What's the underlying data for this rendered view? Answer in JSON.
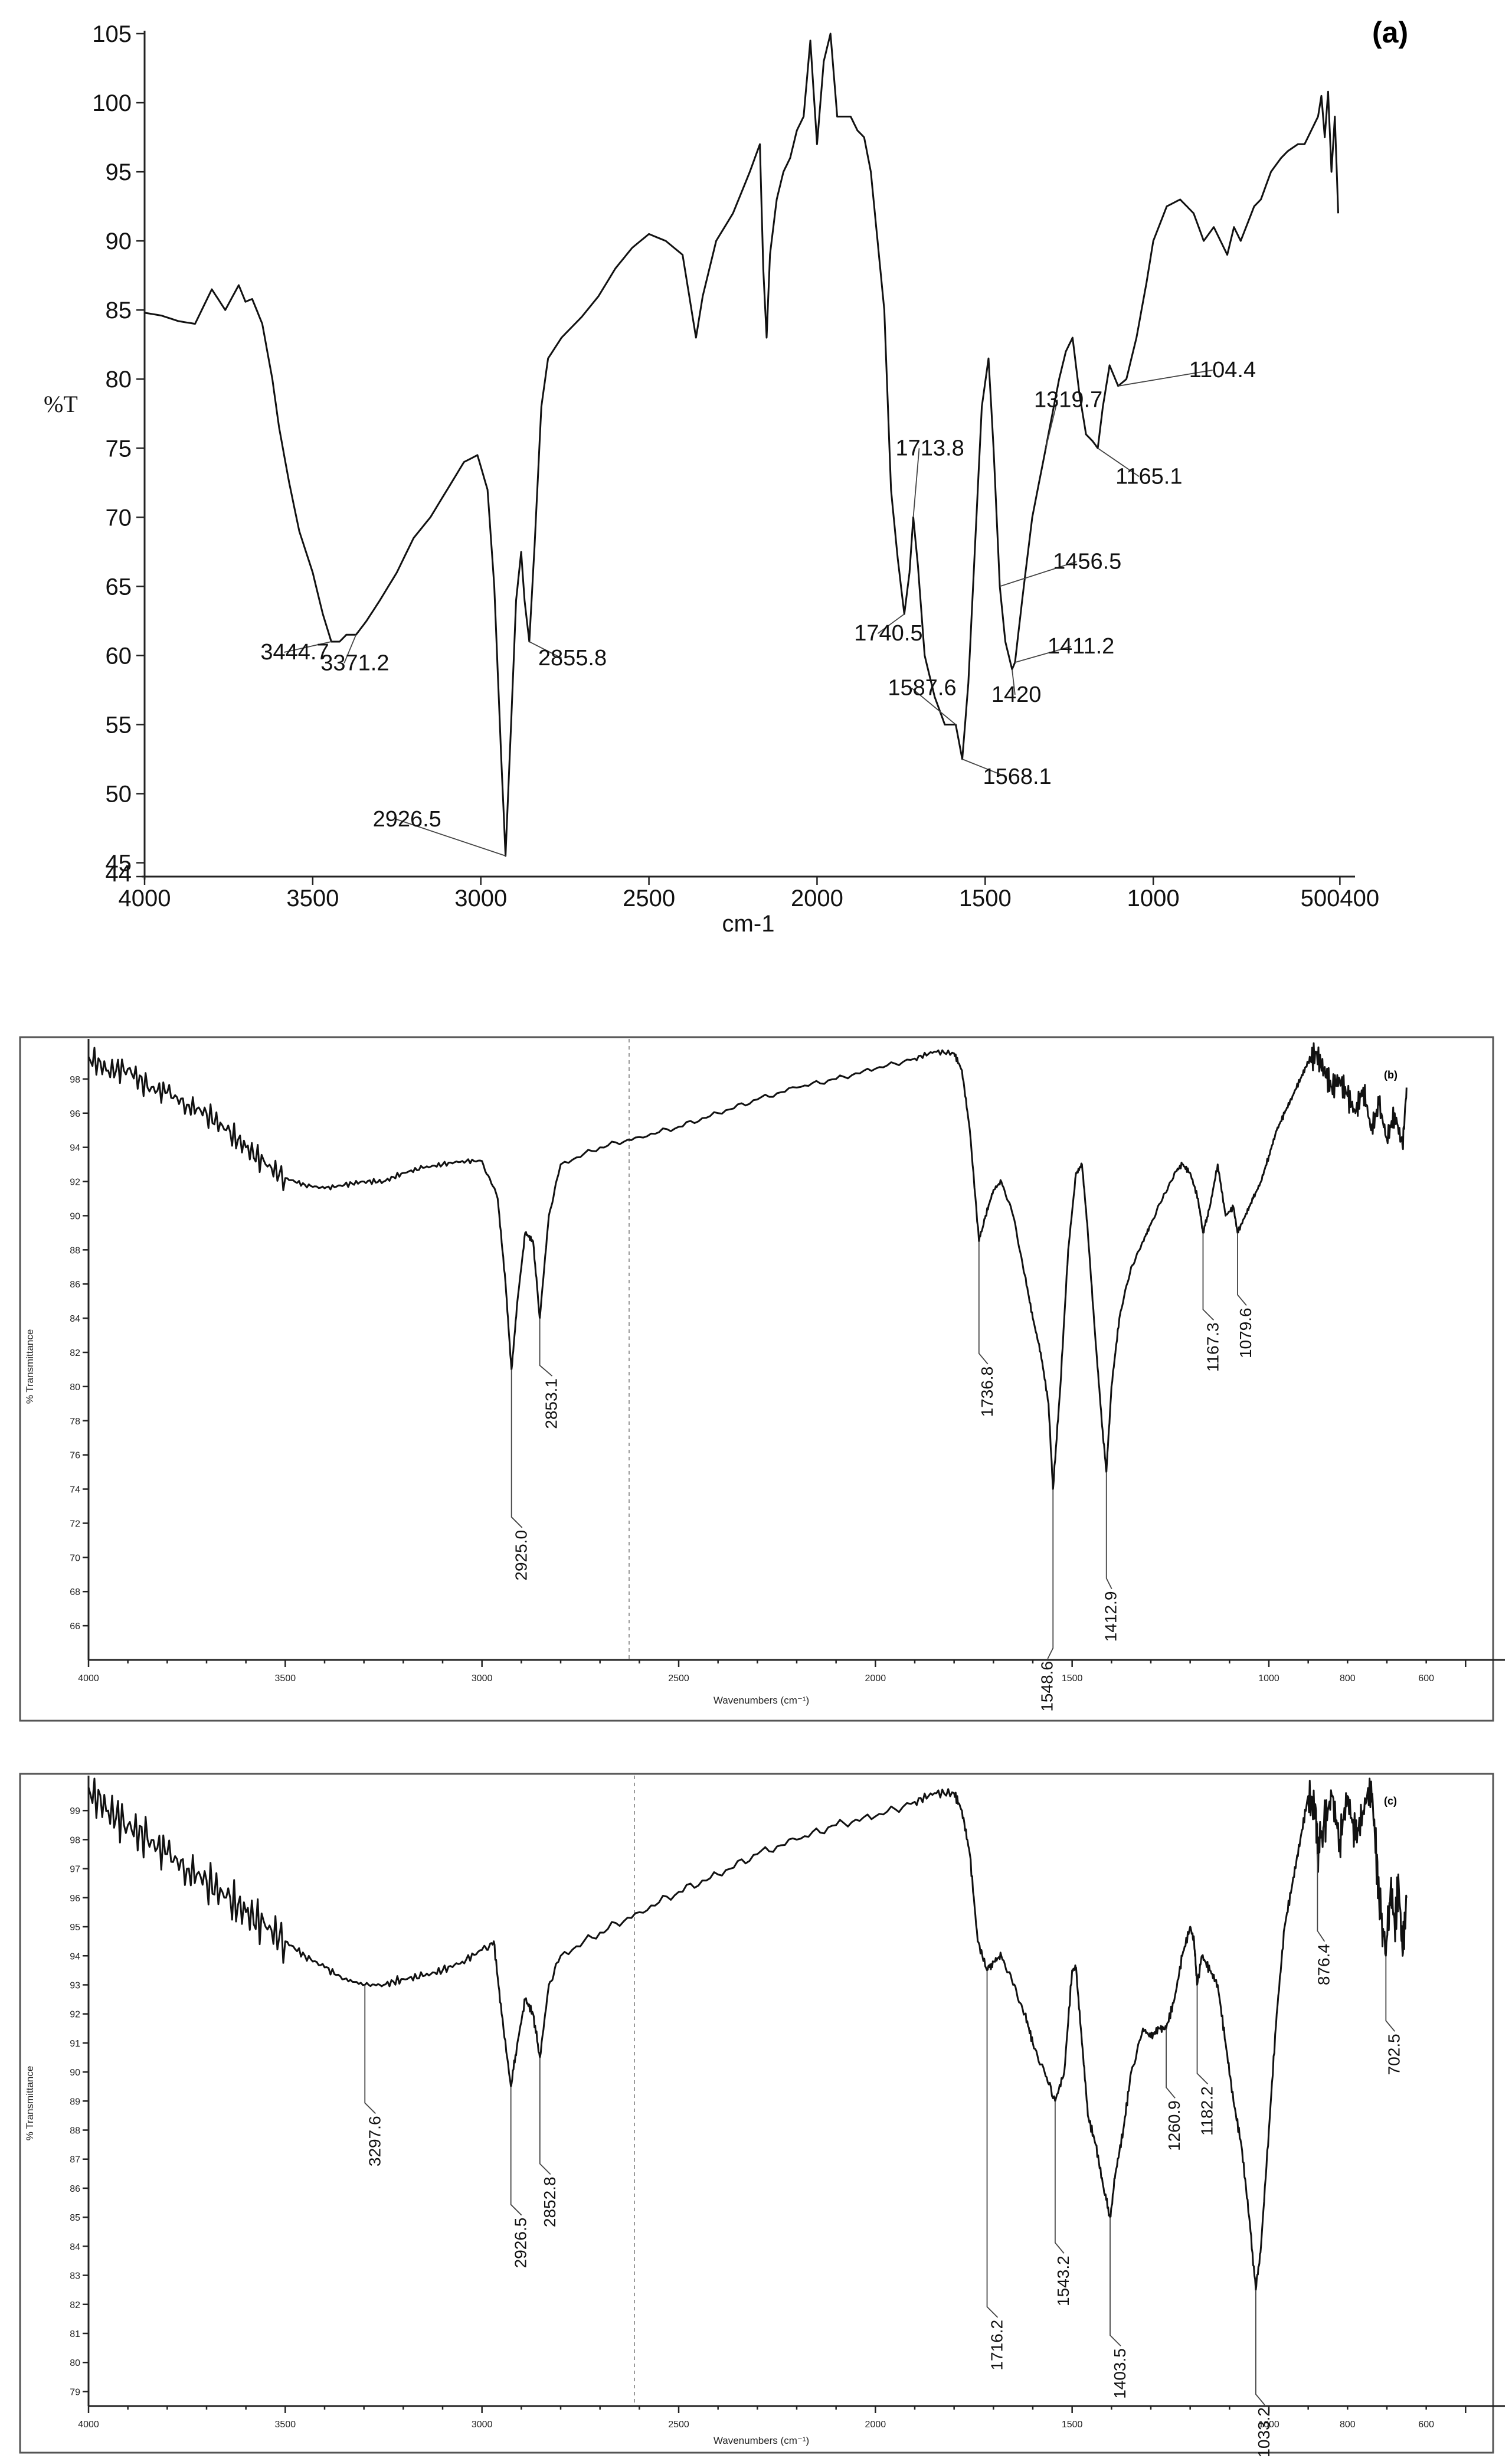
{
  "chart_data": [
    {
      "type": "line",
      "panel_label": "(a)",
      "xlabel": "cm-1",
      "ylabel": "%T",
      "xlim": [
        4000,
        400
      ],
      "ylim": [
        44,
        105
      ],
      "x_ticks": [
        "4000",
        "3500",
        "3000",
        "2500",
        "2000",
        "1500",
        "1000",
        "500400"
      ],
      "y_ticks": [
        44,
        45,
        50,
        55,
        60,
        65,
        70,
        75,
        80,
        85,
        90,
        95,
        100,
        105
      ],
      "grid": false,
      "series": [
        {
          "x": [
            4000,
            3950,
            3900,
            3850,
            3800,
            3760,
            3720,
            3700,
            3680,
            3650,
            3620,
            3600,
            3570,
            3540,
            3500,
            3470,
            3444.7,
            3420,
            3400,
            3371.2,
            3340,
            3300,
            3250,
            3200,
            3150,
            3100,
            3050,
            3010,
            2980,
            2960,
            2940,
            2926.5,
            2910,
            2895,
            2880,
            2870,
            2855.8,
            2840,
            2820,
            2800,
            2760,
            2700,
            2650,
            2600,
            2550,
            2500,
            2450,
            2400,
            2380,
            2360,
            2340,
            2300,
            2250,
            2200,
            2170,
            2160,
            2150,
            2140,
            2120,
            2100,
            2080,
            2060,
            2040,
            2020,
            2000,
            1980,
            1960,
            1940,
            1900,
            1880,
            1860,
            1840,
            1820,
            1800,
            1780,
            1760,
            1740.5,
            1725,
            1713.8,
            1700,
            1680,
            1650,
            1620,
            1587.6,
            1568.1,
            1550,
            1530,
            1510,
            1490,
            1475,
            1456.5,
            1440,
            1420,
            1411.2,
            1390,
            1360,
            1319.7,
            1300,
            1280,
            1260,
            1240,
            1220,
            1200,
            1180,
            1165.1,
            1150,
            1130,
            1104.4,
            1080,
            1050,
            1020,
            1000,
            960,
            920,
            880,
            850,
            820,
            800,
            780,
            760,
            740,
            700,
            680,
            650,
            620,
            600,
            570,
            550,
            530,
            510,
            500,
            490,
            480,
            470,
            460,
            450
          ],
          "y": [
            84.8,
            84.6,
            84.2,
            84.0,
            86.5,
            85.0,
            86.8,
            85.6,
            85.8,
            84.0,
            80.0,
            76.5,
            72.5,
            69.0,
            66.0,
            63.0,
            61.0,
            61.0,
            61.5,
            61.5,
            62.5,
            64.0,
            66.0,
            68.5,
            70.0,
            72.0,
            74.0,
            74.5,
            72.0,
            65.0,
            53.0,
            45.5,
            55.0,
            64.0,
            67.5,
            64.0,
            61.0,
            68.0,
            78.0,
            81.5,
            83.0,
            84.5,
            86.0,
            88.0,
            89.5,
            90.5,
            90.0,
            89.0,
            86.0,
            83.0,
            86.0,
            90.0,
            92.0,
            95.0,
            97.0,
            88.0,
            83.0,
            89.0,
            93.0,
            95.0,
            96.0,
            98.0,
            99.0,
            104.5,
            97.0,
            103.0,
            105.0,
            99.0,
            99.0,
            98.0,
            97.5,
            95.0,
            90.0,
            85.0,
            72.0,
            67.0,
            63.0,
            66.0,
            70.0,
            66.5,
            60.0,
            57.0,
            55.0,
            55.0,
            52.5,
            58.0,
            68.0,
            78.0,
            81.5,
            75.0,
            65.0,
            61.0,
            59.0,
            59.5,
            64.0,
            70.0,
            75.0,
            77.5,
            80.0,
            82.0,
            83.0,
            79.0,
            76.0,
            75.5,
            75.0,
            78.0,
            81.0,
            79.5,
            80.0,
            83.0,
            87.0,
            90.0,
            92.5,
            93.0,
            92.0,
            90.0,
            91.0,
            90.0,
            89.0,
            91.0,
            90.0,
            92.5,
            93.0,
            95.0,
            96.0,
            96.5,
            97.0,
            97.0,
            98.0,
            99.0,
            100.5,
            97.5,
            100.8,
            95.0,
            99.0,
            92.0
          ]
        }
      ],
      "annotations": [
        "3444.7",
        "3371.2",
        "2926.5",
        "2855.8",
        "1740.5",
        "1713.8",
        "1587.6",
        "1568.1",
        "1456.5",
        "1420",
        "1411.2",
        "1319.7",
        "1165.1",
        "1104.4"
      ]
    },
    {
      "type": "line",
      "panel_label": "(b)",
      "xlabel": "Wavenumbers (cm⁻¹)",
      "ylabel": "% Transmittance",
      "xlim": [
        4000,
        400
      ],
      "ylim": [
        64,
        100
      ],
      "x_ticks": [
        4000,
        3500,
        3000,
        2500,
        2000,
        1500,
        1000,
        800,
        600
      ],
      "y_ticks": [
        66,
        68,
        70,
        72,
        74,
        76,
        78,
        80,
        82,
        84,
        86,
        88,
        90,
        92,
        94,
        96,
        98
      ],
      "grid": false,
      "series": [
        {
          "x": [
            4000,
            3950,
            3900,
            3850,
            3800,
            3750,
            3700,
            3650,
            3600,
            3550,
            3500,
            3450,
            3400,
            3350,
            3300,
            3250,
            3200,
            3150,
            3100,
            3050,
            3000,
            2960,
            2940,
            2925.0,
            2910,
            2890,
            2870,
            2853.1,
            2830,
            2800,
            2700,
            2600,
            2500,
            2400,
            2300,
            2200,
            2100,
            2000,
            1900,
            1850,
            1800,
            1780,
            1760,
            1736.8,
            1720,
            1700,
            1680,
            1650,
            1620,
            1600,
            1580,
            1560,
            1548.6,
            1530,
            1510,
            1490,
            1475,
            1460,
            1440,
            1425,
            1412.9,
            1400,
            1380,
            1350,
            1320,
            1300,
            1270,
            1240,
            1220,
            1200,
            1180,
            1167.3,
            1150,
            1130,
            1110,
            1090,
            1079.6,
            1060,
            1040,
            1020,
            1000,
            980,
            960,
            940,
            920,
            900,
            880,
            860,
            840,
            820,
            800,
            780,
            760,
            740,
            720,
            700,
            680,
            660,
            650
          ],
          "y": [
            99.3,
            98.5,
            98.6,
            97.5,
            97.2,
            96.5,
            96.0,
            95.0,
            94.0,
            93.0,
            92.2,
            91.8,
            91.6,
            91.8,
            92.0,
            92.0,
            92.5,
            92.8,
            93.0,
            93.2,
            93.2,
            91.0,
            86.0,
            81.0,
            85.0,
            89.0,
            88.5,
            84.0,
            90.0,
            93.0,
            94.0,
            94.6,
            95.2,
            96.0,
            96.8,
            97.5,
            98.0,
            98.6,
            99.2,
            99.6,
            99.5,
            98.5,
            95.0,
            88.5,
            90.0,
            91.5,
            92.0,
            90.0,
            86.5,
            84.0,
            82.0,
            79.0,
            74.0,
            80.0,
            88.0,
            92.5,
            93.0,
            89.0,
            82.5,
            78.0,
            75.0,
            80.0,
            84.0,
            87.0,
            88.5,
            89.5,
            91.0,
            92.5,
            93.0,
            92.5,
            91.0,
            89.0,
            90.5,
            93.0,
            90.0,
            90.5,
            89.0,
            90.0,
            91.0,
            92.0,
            93.5,
            95.0,
            96.0,
            97.0,
            98.0,
            99.0,
            99.5,
            98.5,
            97.5,
            98.0,
            97.0,
            96.0,
            97.5,
            95.0,
            96.5,
            94.5,
            96.0,
            94.0,
            97.5
          ]
        }
      ],
      "annotations": [
        "2925.0",
        "2853.1",
        "1736.8",
        "1548.6",
        "1412.9",
        "1167.3",
        "1079.6"
      ]
    },
    {
      "type": "line",
      "panel_label": "(c)",
      "xlabel": "Wavenumbers (cm⁻¹)",
      "ylabel": "% Transmittance",
      "xlim": [
        4000,
        400
      ],
      "ylim": [
        78.5,
        100
      ],
      "x_ticks": [
        4000,
        3500,
        3000,
        2500,
        2000,
        1500,
        1000,
        800,
        600
      ],
      "y_ticks": [
        79,
        80,
        81,
        82,
        83,
        84,
        85,
        86,
        87,
        88,
        89,
        90,
        91,
        92,
        93,
        94,
        95,
        96,
        97,
        98,
        99
      ],
      "grid": false,
      "series": [
        {
          "x": [
            4000,
            3950,
            3900,
            3850,
            3800,
            3750,
            3700,
            3650,
            3600,
            3550,
            3500,
            3450,
            3400,
            3350,
            3297.6,
            3250,
            3200,
            3150,
            3100,
            3050,
            3000,
            2970,
            2950,
            2926.5,
            2910,
            2890,
            2870,
            2852.8,
            2830,
            2800,
            2700,
            2600,
            2500,
            2400,
            2300,
            2200,
            2100,
            2000,
            1900,
            1850,
            1800,
            1780,
            1760,
            1740,
            1716.2,
            1700,
            1680,
            1650,
            1620,
            1600,
            1570,
            1543.2,
            1520,
            1500,
            1490,
            1475,
            1460,
            1440,
            1420,
            1403.5,
            1390,
            1370,
            1350,
            1320,
            1300,
            1280,
            1260.9,
            1240,
            1220,
            1200,
            1190,
            1182.2,
            1170,
            1150,
            1130,
            1110,
            1090,
            1070,
            1050,
            1033.2,
            1020,
            1000,
            980,
            960,
            940,
            920,
            900,
            880,
            876.4,
            860,
            840,
            820,
            800,
            780,
            760,
            740,
            730,
            720,
            702.5,
            690,
            680,
            670,
            660,
            650
          ],
          "y": [
            99.8,
            99.0,
            98.5,
            98.0,
            97.5,
            97.0,
            96.6,
            96.0,
            95.5,
            95.0,
            94.5,
            94.0,
            93.6,
            93.2,
            93.0,
            93.0,
            93.2,
            93.3,
            93.5,
            93.8,
            94.2,
            94.5,
            92.0,
            89.5,
            91.0,
            92.5,
            92.0,
            90.5,
            93.0,
            94.0,
            94.8,
            95.5,
            96.2,
            96.8,
            97.5,
            98.0,
            98.5,
            98.8,
            99.3,
            99.6,
            99.6,
            99.0,
            97.5,
            94.5,
            93.5,
            93.8,
            94.0,
            93.0,
            92.0,
            91.0,
            90.0,
            89.0,
            90.0,
            93.5,
            93.6,
            91.0,
            88.5,
            87.5,
            86.0,
            85.0,
            86.5,
            88.0,
            90.0,
            91.5,
            91.2,
            91.5,
            91.5,
            92.5,
            94.0,
            95.0,
            94.5,
            93.0,
            94.0,
            93.5,
            93.0,
            91.0,
            89.0,
            87.5,
            85.0,
            82.5,
            84.0,
            88.0,
            92.0,
            95.0,
            96.5,
            98.0,
            99.5,
            99.0,
            97.5,
            98.5,
            99.5,
            98.0,
            99.5,
            98.0,
            99.0,
            100.0,
            98.0,
            96.0,
            94.0,
            96.5,
            95.0,
            96.5,
            94.0,
            96.0
          ]
        }
      ],
      "annotations": [
        "3297.6",
        "2926.5",
        "2852.8",
        "1716.2",
        "1543.2",
        "1403.5",
        "1260.9",
        "1182.2",
        "1033.2",
        "876.4",
        "702.5"
      ]
    }
  ]
}
